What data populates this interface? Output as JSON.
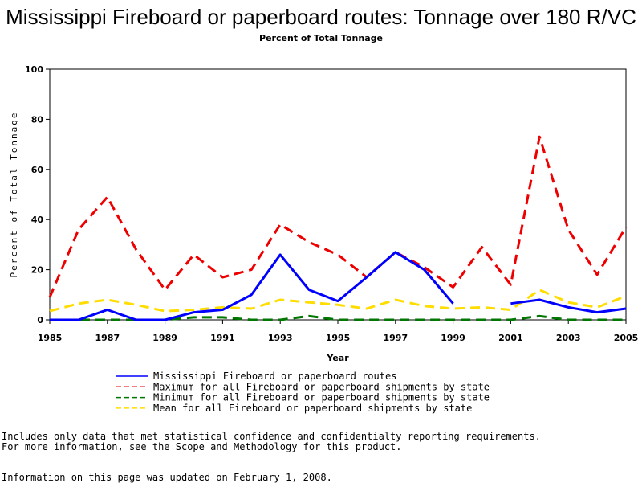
{
  "chart_data": {
    "type": "line",
    "title": "Mississippi Fireboard or paperboard routes: Tonnage over 180 R/VC",
    "subtitle": "Percent of Total Tonnage",
    "xlabel": "Year",
    "ylabel": "Percent of Total Tonnage",
    "xlim": [
      1985,
      2005
    ],
    "ylim": [
      0,
      100
    ],
    "xticks": [
      "1985",
      "1987",
      "1989",
      "1991",
      "1993",
      "1995",
      "1997",
      "1999",
      "2001",
      "2003",
      "2005"
    ],
    "yticks": [
      "0",
      "20",
      "40",
      "60",
      "80",
      "100"
    ],
    "legend_position": "bottom",
    "grid": false,
    "series": [
      {
        "name": "Mississippi Fireboard or paperboard routes",
        "color": "#0000ff",
        "style": "solid",
        "points": [
          [
            1985,
            0
          ],
          [
            1986,
            0
          ],
          [
            1987,
            4
          ],
          [
            1988,
            0
          ],
          [
            1989,
            0
          ],
          [
            1990,
            3
          ],
          [
            1991,
            4
          ],
          [
            1992,
            10
          ],
          [
            1993,
            26
          ],
          [
            1994,
            12
          ],
          [
            1995,
            7.5
          ],
          [
            1996,
            17
          ],
          [
            1997,
            27
          ],
          [
            1998,
            20
          ],
          [
            1999,
            6.5
          ],
          [
            2000,
            null
          ],
          [
            2001,
            6.5
          ],
          [
            2002,
            8
          ],
          [
            2003,
            5
          ],
          [
            2004,
            3
          ],
          [
            2005,
            4.5
          ]
        ]
      },
      {
        "name": "Maximum for all Fireboard or paperboard shipments by state",
        "color": "#ee0000",
        "style": "dashed",
        "points": [
          [
            1985,
            9
          ],
          [
            1986,
            36
          ],
          [
            1987,
            49
          ],
          [
            1988,
            28
          ],
          [
            1989,
            12
          ],
          [
            1990,
            26
          ],
          [
            1991,
            17
          ],
          [
            1992,
            20
          ],
          [
            1993,
            38
          ],
          [
            1994,
            31
          ],
          [
            1995,
            26
          ],
          [
            1996,
            17
          ],
          [
            1997,
            27
          ],
          [
            1998,
            21
          ],
          [
            1999,
            13
          ],
          [
            2000,
            29
          ],
          [
            2001,
            14
          ],
          [
            2002,
            73
          ],
          [
            2003,
            36
          ],
          [
            2004,
            18
          ],
          [
            2005,
            37
          ]
        ]
      },
      {
        "name": "Minimum for all Fireboard or paperboard shipments by state",
        "color": "#007700",
        "style": "dashed",
        "points": [
          [
            1985,
            0
          ],
          [
            1986,
            0
          ],
          [
            1987,
            0
          ],
          [
            1988,
            0
          ],
          [
            1989,
            0
          ],
          [
            1990,
            1
          ],
          [
            1991,
            1
          ],
          [
            1992,
            0
          ],
          [
            1993,
            0
          ],
          [
            1994,
            1.5
          ],
          [
            1995,
            0
          ],
          [
            1996,
            0
          ],
          [
            1997,
            0
          ],
          [
            1998,
            0
          ],
          [
            1999,
            0
          ],
          [
            2000,
            0
          ],
          [
            2001,
            0
          ],
          [
            2002,
            1.5
          ],
          [
            2003,
            0
          ],
          [
            2004,
            0
          ],
          [
            2005,
            0
          ]
        ]
      },
      {
        "name": "Mean for all Fireboard or paperboard shipments by state",
        "color": "#ffdd00",
        "style": "dashed",
        "points": [
          [
            1985,
            3.5
          ],
          [
            1986,
            6.5
          ],
          [
            1987,
            8
          ],
          [
            1988,
            6
          ],
          [
            1989,
            3.5
          ],
          [
            1990,
            4
          ],
          [
            1991,
            5
          ],
          [
            1992,
            4.5
          ],
          [
            1993,
            8
          ],
          [
            1994,
            7
          ],
          [
            1995,
            6
          ],
          [
            1996,
            4.5
          ],
          [
            1997,
            8
          ],
          [
            1998,
            5.5
          ],
          [
            1999,
            4.5
          ],
          [
            2000,
            5
          ],
          [
            2001,
            4
          ],
          [
            2002,
            12
          ],
          [
            2003,
            7
          ],
          [
            2004,
            5
          ],
          [
            2005,
            9.5
          ]
        ]
      }
    ]
  },
  "notes": {
    "line1": "Includes only data that met statistical confidence and confidentialty reporting requirements.",
    "line2": "For more information, see the Scope and Methodology for this product.",
    "updated": "Information on this page was updated on February 1, 2008."
  }
}
